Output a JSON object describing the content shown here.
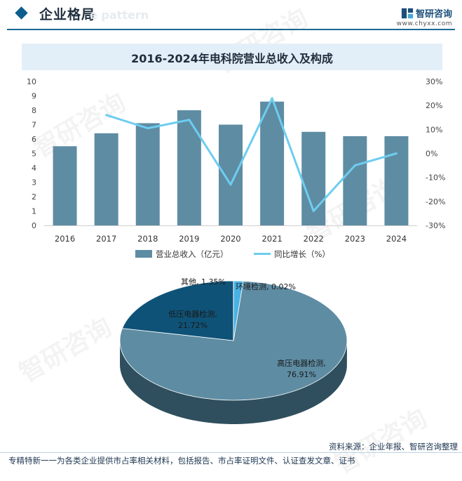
{
  "header": {
    "section_title": "企业格局",
    "section_title_shadow": "e pattern",
    "brand_name": "智研咨询",
    "brand_url": "www.chyxx.com"
  },
  "chart_data": [
    {
      "type": "bar+line",
      "title": "2016-2024年电科院营业总收入及构成",
      "categories": [
        "2016",
        "2017",
        "2018",
        "2019",
        "2020",
        "2021",
        "2022",
        "2023",
        "2024"
      ],
      "series": [
        {
          "name": "营业总收入（亿元）",
          "type": "bar",
          "axis": "left",
          "color": "#5e8ca3",
          "values": [
            5.5,
            6.4,
            7.1,
            8.0,
            7.0,
            8.6,
            6.5,
            6.2,
            6.2
          ]
        },
        {
          "name": "同比增长（%）",
          "type": "line",
          "axis": "right",
          "color": "#6dcdf0",
          "values": [
            null,
            16,
            10.5,
            14,
            -13,
            23,
            -24,
            -5,
            0
          ]
        }
      ],
      "yleft": {
        "min": 0,
        "max": 10,
        "ticks": [
          "0",
          "1",
          "2",
          "3",
          "4",
          "5",
          "6",
          "7",
          "8",
          "9",
          "10"
        ]
      },
      "yright": {
        "min": -30,
        "max": 30,
        "ticks": [
          "-30%",
          "-20%",
          "-10%",
          "0%",
          "10%",
          "20%",
          "30%"
        ]
      },
      "legend": "bottom"
    },
    {
      "type": "pie",
      "slices": [
        {
          "label": "高压电器检测,",
          "value_label": "76.91%",
          "value": 76.91,
          "color": "#5e8ca3"
        },
        {
          "label": "低压电器检测,",
          "value_label": "21.72%",
          "value": 21.72,
          "color": "#0f5277"
        },
        {
          "label": "其他,",
          "value_label": "1.35%",
          "value": 1.35,
          "color": "#49b2e3"
        },
        {
          "label": "环境检测,",
          "value_label": "0.02%",
          "value": 0.02,
          "color": "#2a6b8e"
        }
      ]
    }
  ],
  "footer": {
    "source": "资料来源：企业年报、智研咨询整理",
    "slogan": "专精特新一一为各类企业提供市占率相关材料，包括报告、市占率证明文件、认证查发文章、证书"
  },
  "watermark_text": "智研咨询"
}
